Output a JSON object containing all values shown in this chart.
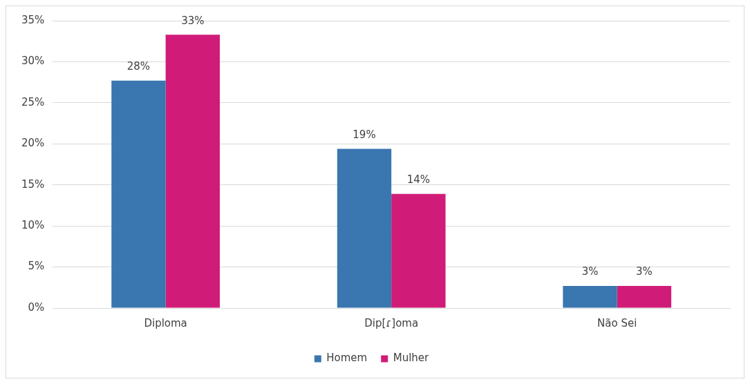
{
  "chart_data": {
    "type": "bar",
    "categories": [
      "Diploma",
      "Dip[ɾ]oma",
      "Não Sei"
    ],
    "series": [
      {
        "name": "Homem",
        "color": "#3a76b0",
        "values": [
          27.7,
          19.4,
          2.7
        ],
        "value_labels": [
          "28%",
          "19%",
          "3%"
        ]
      },
      {
        "name": "Mulher",
        "color": "#d01c78",
        "values": [
          33.3,
          13.9,
          2.7
        ],
        "value_labels": [
          "33%",
          "14%",
          "3%"
        ]
      }
    ],
    "ylim": [
      0,
      35
    ],
    "yticks": [
      {
        "value": 0,
        "label": "0%"
      },
      {
        "value": 5,
        "label": "5%"
      },
      {
        "value": 10,
        "label": "10%"
      },
      {
        "value": 15,
        "label": "15%"
      },
      {
        "value": 20,
        "label": "20%"
      },
      {
        "value": 25,
        "label": "25%"
      },
      {
        "value": 30,
        "label": "30%"
      },
      {
        "value": 35,
        "label": "35%"
      }
    ],
    "grid": "y",
    "legend": "bottom"
  }
}
